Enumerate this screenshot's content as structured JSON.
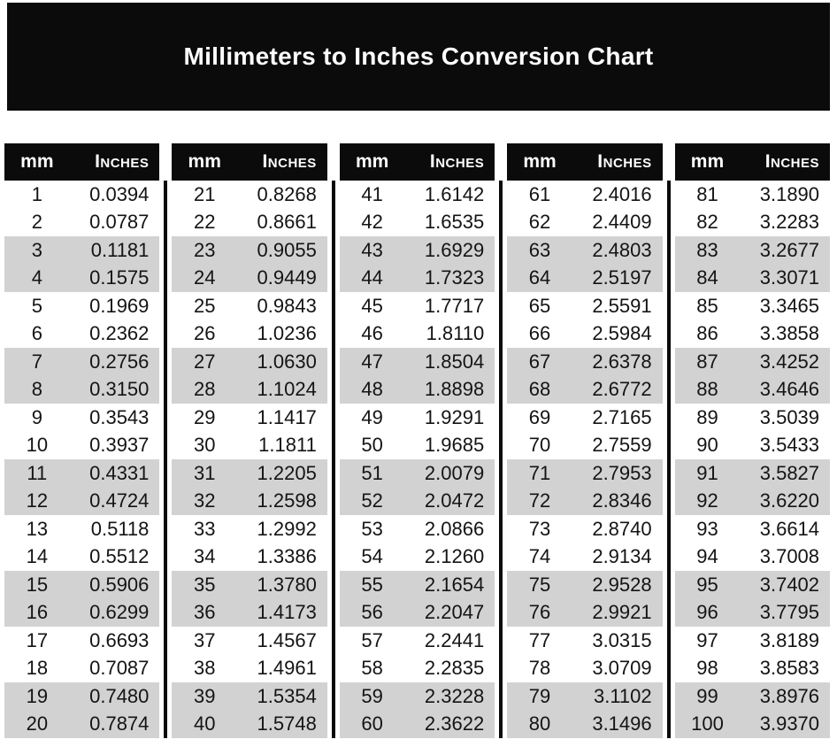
{
  "title": "Millimeters to Inches Conversion Chart",
  "columns": {
    "mm": "mm",
    "inches": "Inches"
  },
  "colors": {
    "banner": "#0b0b0b",
    "stripe": "#d2d2d2"
  },
  "groups": [
    {
      "rows": [
        {
          "mm": "1",
          "inches": "0.0394"
        },
        {
          "mm": "2",
          "inches": "0.0787"
        },
        {
          "mm": "3",
          "inches": "0.1181"
        },
        {
          "mm": "4",
          "inches": "0.1575"
        },
        {
          "mm": "5",
          "inches": "0.1969"
        },
        {
          "mm": "6",
          "inches": "0.2362"
        },
        {
          "mm": "7",
          "inches": "0.2756"
        },
        {
          "mm": "8",
          "inches": "0.3150"
        },
        {
          "mm": "9",
          "inches": "0.3543"
        },
        {
          "mm": "10",
          "inches": "0.3937"
        },
        {
          "mm": "11",
          "inches": "0.4331"
        },
        {
          "mm": "12",
          "inches": "0.4724"
        },
        {
          "mm": "13",
          "inches": "0.5118"
        },
        {
          "mm": "14",
          "inches": "0.5512"
        },
        {
          "mm": "15",
          "inches": "0.5906"
        },
        {
          "mm": "16",
          "inches": "0.6299"
        },
        {
          "mm": "17",
          "inches": "0.6693"
        },
        {
          "mm": "18",
          "inches": "0.7087"
        },
        {
          "mm": "19",
          "inches": "0.7480"
        },
        {
          "mm": "20",
          "inches": "0.7874"
        }
      ]
    },
    {
      "rows": [
        {
          "mm": "21",
          "inches": "0.8268"
        },
        {
          "mm": "22",
          "inches": "0.8661"
        },
        {
          "mm": "23",
          "inches": "0.9055"
        },
        {
          "mm": "24",
          "inches": "0.9449"
        },
        {
          "mm": "25",
          "inches": "0.9843"
        },
        {
          "mm": "26",
          "inches": "1.0236"
        },
        {
          "mm": "27",
          "inches": "1.0630"
        },
        {
          "mm": "28",
          "inches": "1.1024"
        },
        {
          "mm": "29",
          "inches": "1.1417"
        },
        {
          "mm": "30",
          "inches": "1.1811"
        },
        {
          "mm": "31",
          "inches": "1.2205"
        },
        {
          "mm": "32",
          "inches": "1.2598"
        },
        {
          "mm": "33",
          "inches": "1.2992"
        },
        {
          "mm": "34",
          "inches": "1.3386"
        },
        {
          "mm": "35",
          "inches": "1.3780"
        },
        {
          "mm": "36",
          "inches": "1.4173"
        },
        {
          "mm": "37",
          "inches": "1.4567"
        },
        {
          "mm": "38",
          "inches": "1.4961"
        },
        {
          "mm": "39",
          "inches": "1.5354"
        },
        {
          "mm": "40",
          "inches": "1.5748"
        }
      ]
    },
    {
      "rows": [
        {
          "mm": "41",
          "inches": "1.6142"
        },
        {
          "mm": "42",
          "inches": "1.6535"
        },
        {
          "mm": "43",
          "inches": "1.6929"
        },
        {
          "mm": "44",
          "inches": "1.7323"
        },
        {
          "mm": "45",
          "inches": "1.7717"
        },
        {
          "mm": "46",
          "inches": "1.8110"
        },
        {
          "mm": "47",
          "inches": "1.8504"
        },
        {
          "mm": "48",
          "inches": "1.8898"
        },
        {
          "mm": "49",
          "inches": "1.9291"
        },
        {
          "mm": "50",
          "inches": "1.9685"
        },
        {
          "mm": "51",
          "inches": "2.0079"
        },
        {
          "mm": "52",
          "inches": "2.0472"
        },
        {
          "mm": "53",
          "inches": "2.0866"
        },
        {
          "mm": "54",
          "inches": "2.1260"
        },
        {
          "mm": "55",
          "inches": "2.1654"
        },
        {
          "mm": "56",
          "inches": "2.2047"
        },
        {
          "mm": "57",
          "inches": "2.2441"
        },
        {
          "mm": "58",
          "inches": "2.2835"
        },
        {
          "mm": "59",
          "inches": "2.3228"
        },
        {
          "mm": "60",
          "inches": "2.3622"
        }
      ]
    },
    {
      "rows": [
        {
          "mm": "61",
          "inches": "2.4016"
        },
        {
          "mm": "62",
          "inches": "2.4409"
        },
        {
          "mm": "63",
          "inches": "2.4803"
        },
        {
          "mm": "64",
          "inches": "2.5197"
        },
        {
          "mm": "65",
          "inches": "2.5591"
        },
        {
          "mm": "66",
          "inches": "2.5984"
        },
        {
          "mm": "67",
          "inches": "2.6378"
        },
        {
          "mm": "68",
          "inches": "2.6772"
        },
        {
          "mm": "69",
          "inches": "2.7165"
        },
        {
          "mm": "70",
          "inches": "2.7559"
        },
        {
          "mm": "71",
          "inches": "2.7953"
        },
        {
          "mm": "72",
          "inches": "2.8346"
        },
        {
          "mm": "73",
          "inches": "2.8740"
        },
        {
          "mm": "74",
          "inches": "2.9134"
        },
        {
          "mm": "75",
          "inches": "2.9528"
        },
        {
          "mm": "76",
          "inches": "2.9921"
        },
        {
          "mm": "77",
          "inches": "3.0315"
        },
        {
          "mm": "78",
          "inches": "3.0709"
        },
        {
          "mm": "79",
          "inches": "3.1102"
        },
        {
          "mm": "80",
          "inches": "3.1496"
        }
      ]
    },
    {
      "rows": [
        {
          "mm": "81",
          "inches": "3.1890"
        },
        {
          "mm": "82",
          "inches": "3.2283"
        },
        {
          "mm": "83",
          "inches": "3.2677"
        },
        {
          "mm": "84",
          "inches": "3.3071"
        },
        {
          "mm": "85",
          "inches": "3.3465"
        },
        {
          "mm": "86",
          "inches": "3.3858"
        },
        {
          "mm": "87",
          "inches": "3.4252"
        },
        {
          "mm": "88",
          "inches": "3.4646"
        },
        {
          "mm": "89",
          "inches": "3.5039"
        },
        {
          "mm": "90",
          "inches": "3.5433"
        },
        {
          "mm": "91",
          "inches": "3.5827"
        },
        {
          "mm": "92",
          "inches": "3.6220"
        },
        {
          "mm": "93",
          "inches": "3.6614"
        },
        {
          "mm": "94",
          "inches": "3.7008"
        },
        {
          "mm": "95",
          "inches": "3.7402"
        },
        {
          "mm": "96",
          "inches": "3.7795"
        },
        {
          "mm": "97",
          "inches": "3.8189"
        },
        {
          "mm": "98",
          "inches": "3.8583"
        },
        {
          "mm": "99",
          "inches": "3.8976"
        },
        {
          "mm": "100",
          "inches": "3.9370"
        }
      ]
    }
  ]
}
